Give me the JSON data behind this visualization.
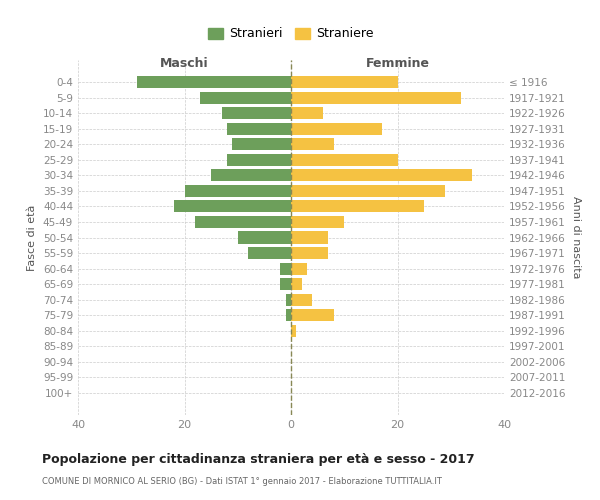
{
  "age_groups": [
    "0-4",
    "5-9",
    "10-14",
    "15-19",
    "20-24",
    "25-29",
    "30-34",
    "35-39",
    "40-44",
    "45-49",
    "50-54",
    "55-59",
    "60-64",
    "65-69",
    "70-74",
    "75-79",
    "80-84",
    "85-89",
    "90-94",
    "95-99",
    "100+"
  ],
  "birth_years": [
    "2012-2016",
    "2007-2011",
    "2002-2006",
    "1997-2001",
    "1992-1996",
    "1987-1991",
    "1982-1986",
    "1977-1981",
    "1972-1976",
    "1967-1971",
    "1962-1966",
    "1957-1961",
    "1952-1956",
    "1947-1951",
    "1942-1946",
    "1937-1941",
    "1932-1936",
    "1927-1931",
    "1922-1926",
    "1917-1921",
    "≤ 1916"
  ],
  "maschi": [
    29,
    17,
    13,
    12,
    11,
    12,
    15,
    20,
    22,
    18,
    10,
    8,
    2,
    2,
    1,
    1,
    0,
    0,
    0,
    0,
    0
  ],
  "femmine": [
    20,
    32,
    6,
    17,
    8,
    20,
    34,
    29,
    25,
    10,
    7,
    7,
    3,
    2,
    4,
    8,
    1,
    0,
    0,
    0,
    0
  ],
  "color_maschi": "#6d9f5b",
  "color_femmine": "#f5c242",
  "title": "Popolazione per cittadinanza straniera per età e sesso - 2017",
  "subtitle": "COMUNE DI MORNICO AL SERIO (BG) - Dati ISTAT 1° gennaio 2017 - Elaborazione TUTTITALIA.IT",
  "xlabel_left": "Maschi",
  "xlabel_right": "Femmine",
  "ylabel_left": "Fasce di età",
  "ylabel_right": "Anni di nascita",
  "legend_maschi": "Stranieri",
  "legend_femmine": "Straniere",
  "xlim": 40,
  "background_color": "#ffffff",
  "grid_color": "#cccccc",
  "axis_label_color": "#555555",
  "tick_label_color": "#888888",
  "title_color": "#222222",
  "subtitle_color": "#666666"
}
